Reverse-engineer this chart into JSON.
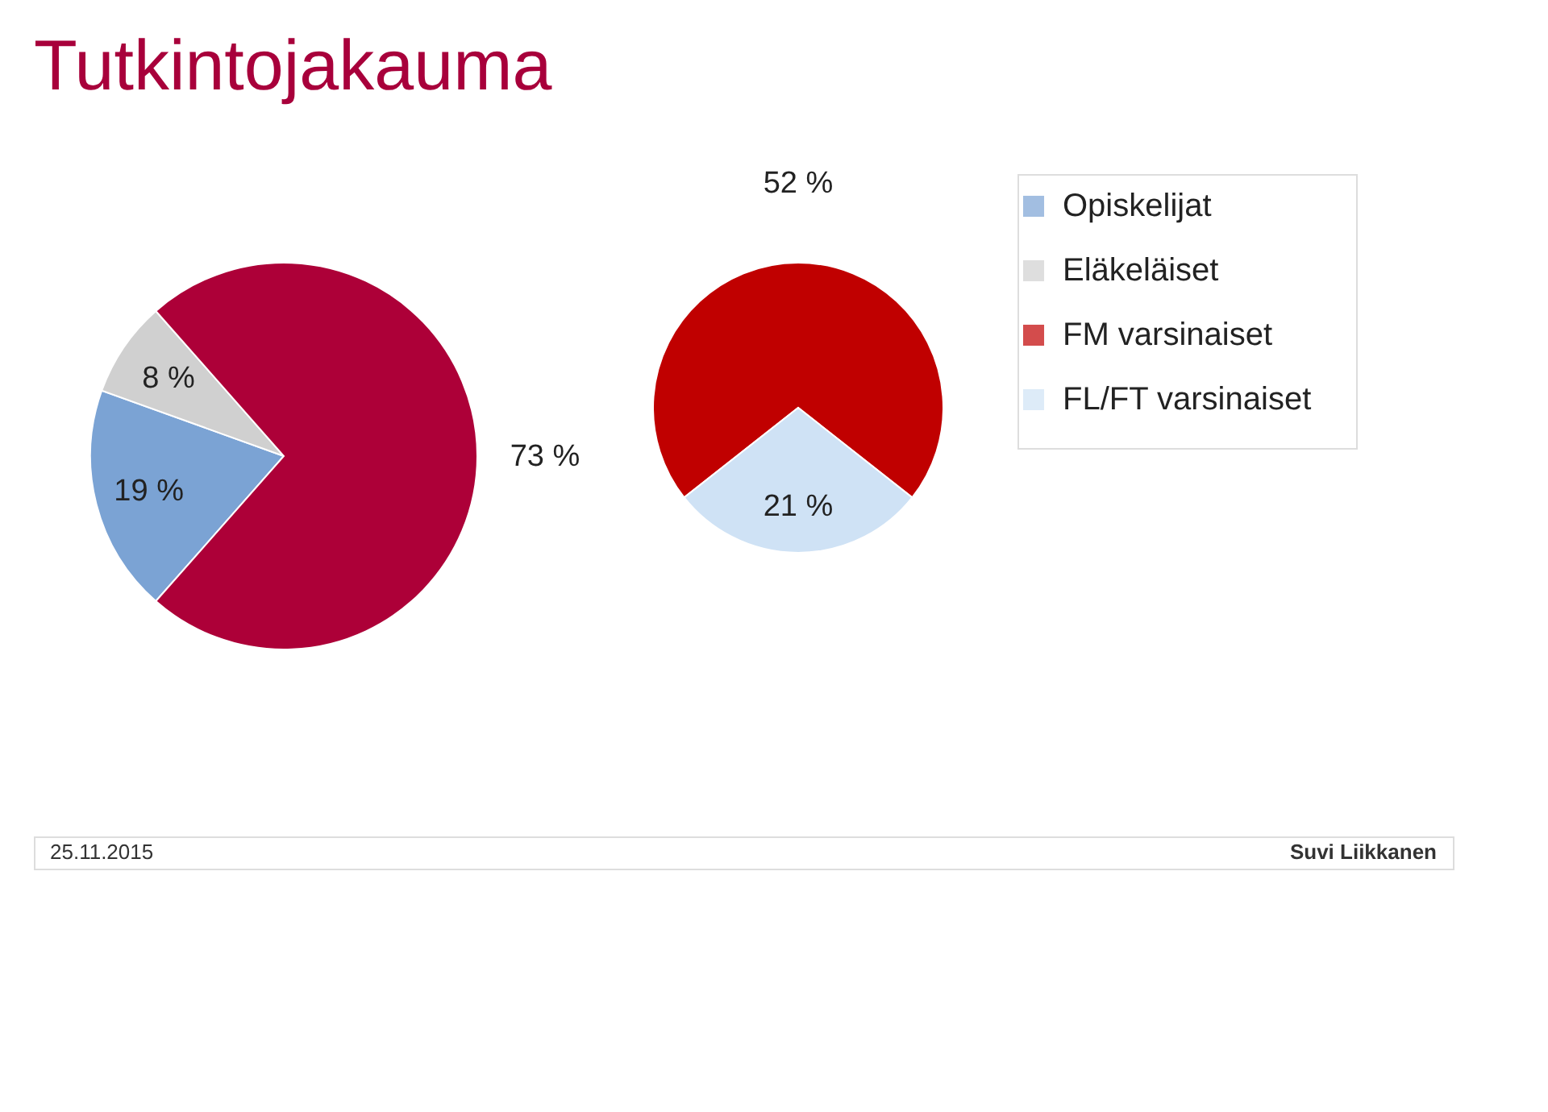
{
  "chart_data": [
    {
      "type": "pie",
      "title": "Tutkintojakauma",
      "categories": [
        "Opiskelijat",
        "Eläkeläiset",
        null
      ],
      "values": [
        19,
        8,
        73
      ],
      "colors": [
        "#7ba3d4",
        "#d0d0d0",
        "#ad0038"
      ],
      "value_labels": [
        "19 %",
        "8 %",
        "73 %"
      ],
      "legend": "right"
    },
    {
      "type": "pie",
      "categories": [
        "FM varsinaiset",
        "FL/FT varsinaiset"
      ],
      "values": [
        52,
        21
      ],
      "colors": [
        "#c00000",
        "#cfe2f5"
      ],
      "value_labels": [
        "52 %",
        "21 %"
      ],
      "legend": "right",
      "annotations": [
        "25.11.2015",
        "Suvi Liikkanen"
      ]
    }
  ]
}
